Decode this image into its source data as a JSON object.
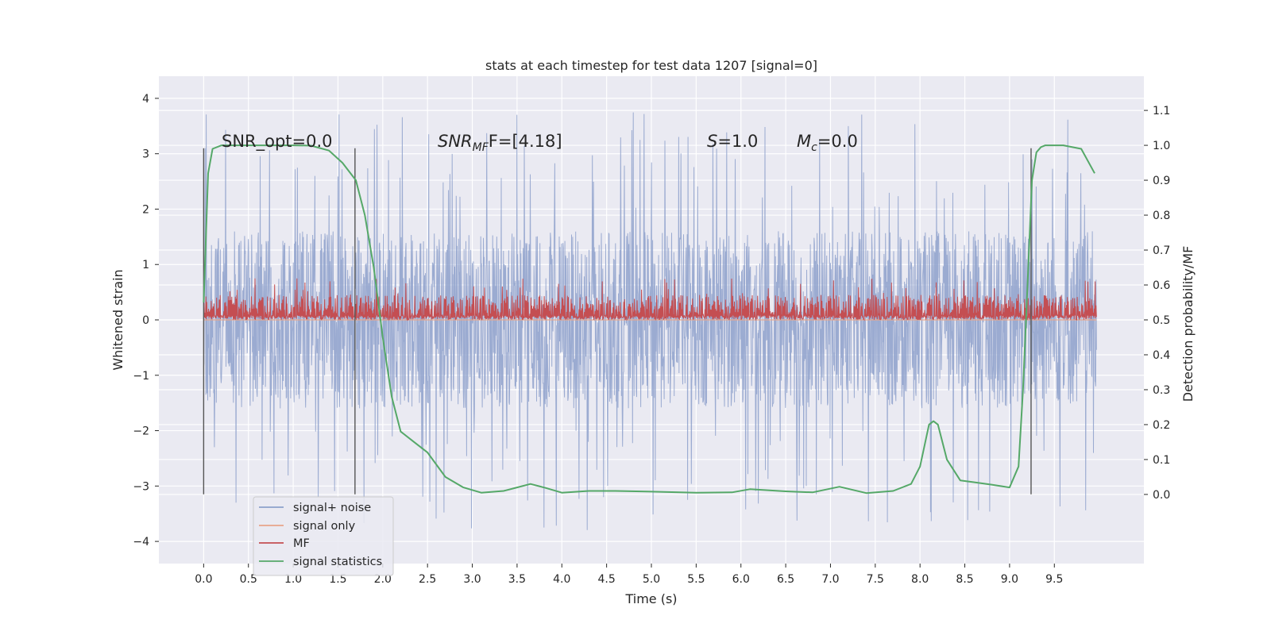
{
  "chart_data": {
    "type": "line",
    "title": "stats at each timestep for test data 1207 [signal=0]",
    "xlabel": "Time (s)",
    "ylabel_left": "Whitened strain",
    "ylabel_right": "Detection probability/MF",
    "xlim": [
      -0.5,
      10.5
    ],
    "ylim_left": [
      -4.4,
      4.4
    ],
    "ylim_right": [
      -0.198,
      1.198
    ],
    "x_ticks": [
      "0.0",
      "0.5",
      "1.0",
      "1.5",
      "2.0",
      "2.5",
      "3.0",
      "3.5",
      "4.0",
      "4.5",
      "5.0",
      "5.5",
      "6.0",
      "6.5",
      "7.0",
      "7.5",
      "8.0",
      "8.5",
      "9.0",
      "9.5"
    ],
    "y_left_ticks": [
      "4",
      "3",
      "2",
      "1",
      "0",
      "−1",
      "−2",
      "−3",
      "−4"
    ],
    "y_right_ticks": [
      "1.1",
      "1.0",
      "0.9",
      "0.8",
      "0.7",
      "0.6",
      "0.5",
      "0.4",
      "0.3",
      "0.2",
      "0.1",
      "0.0"
    ],
    "grid": true,
    "legend_position": "lower-left",
    "annotations": {
      "snr_opt": "SNR_opt=0.0",
      "snr_mf_base": "SNR",
      "snr_mf_sub": "MF",
      "snr_mf_tail": "F=[4.18]",
      "s_label": "S",
      "s_value": "=1.0",
      "mc_base": "M",
      "mc_sub": "c",
      "mc_value": "=0.0"
    },
    "vertical_markers_x": [
      0.0,
      1.69,
      9.24
    ],
    "series": [
      {
        "name": "signal+ noise",
        "axis": "left",
        "color": "#8da0cb",
        "envelope": "approx. ±2 typical, spikes to ±4"
      },
      {
        "name": "signal only",
        "axis": "left",
        "color": "#e8a48a",
        "values": "≈0 throughout"
      },
      {
        "name": "MF",
        "axis": "left",
        "color": "#c44e52",
        "range": [
          0.0,
          1.0
        ]
      },
      {
        "name": "signal statistics",
        "axis": "right",
        "color": "#55a868",
        "x": [
          0.0,
          0.05,
          0.1,
          0.2,
          0.4,
          0.6,
          0.8,
          1.0,
          1.2,
          1.4,
          1.55,
          1.7,
          1.8,
          1.9,
          2.0,
          2.1,
          2.2,
          2.35,
          2.5,
          2.7,
          2.9,
          3.1,
          3.35,
          3.5,
          3.65,
          3.8,
          4.0,
          4.3,
          4.6,
          5.0,
          5.5,
          5.9,
          6.1,
          6.5,
          6.8,
          7.1,
          7.4,
          7.7,
          7.9,
          8.0,
          8.1,
          8.15,
          8.2,
          8.3,
          8.45,
          8.6,
          8.8,
          9.0,
          9.1,
          9.15,
          9.2,
          9.25,
          9.3,
          9.35,
          9.4,
          9.6,
          9.8,
          9.95
        ],
        "y": [
          0.55,
          0.92,
          0.99,
          1.0,
          1.0,
          1.0,
          1.0,
          1.0,
          0.999,
          0.985,
          0.95,
          0.9,
          0.8,
          0.65,
          0.45,
          0.28,
          0.18,
          0.15,
          0.12,
          0.05,
          0.02,
          0.005,
          0.01,
          0.02,
          0.03,
          0.02,
          0.005,
          0.01,
          0.01,
          0.008,
          0.005,
          0.006,
          0.015,
          0.009,
          0.006,
          0.022,
          0.004,
          0.01,
          0.03,
          0.08,
          0.2,
          0.21,
          0.2,
          0.1,
          0.04,
          0.035,
          0.028,
          0.02,
          0.08,
          0.3,
          0.6,
          0.9,
          0.98,
          0.995,
          1.0,
          1.0,
          0.99,
          0.92
        ]
      }
    ]
  }
}
